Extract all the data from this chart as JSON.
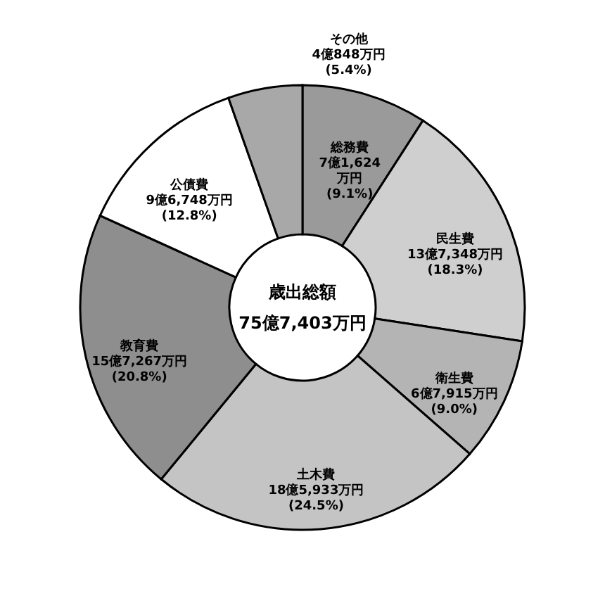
{
  "chart_data": {
    "type": "donut",
    "categories": [
      "総務費",
      "民生費",
      "衛生費",
      "土木費",
      "教育費",
      "公債費",
      "その他"
    ],
    "values": [
      9.1,
      18.3,
      9.0,
      24.5,
      20.8,
      12.8,
      5.4
    ],
    "value_labels": [
      "7億1,624\n万円\n(9.1%)",
      "13億7,348万円\n(18.3%)",
      "6億7,915万円\n(9.0%)",
      "18億5,933万円\n(24.5%)",
      "15億7,267万円\n(20.8%)",
      "9億6,748万円\n(12.8%)",
      "4億848万円\n(5.4%)"
    ],
    "colors": [
      "#9a9a9a",
      "#cfcfcf",
      "#b4b4b4",
      "#c4c4c4",
      "#8e8e8e",
      "#ffffff",
      "#a8a8a8"
    ],
    "annotations": [
      "歳出総額",
      "75億7,403万円"
    ]
  }
}
